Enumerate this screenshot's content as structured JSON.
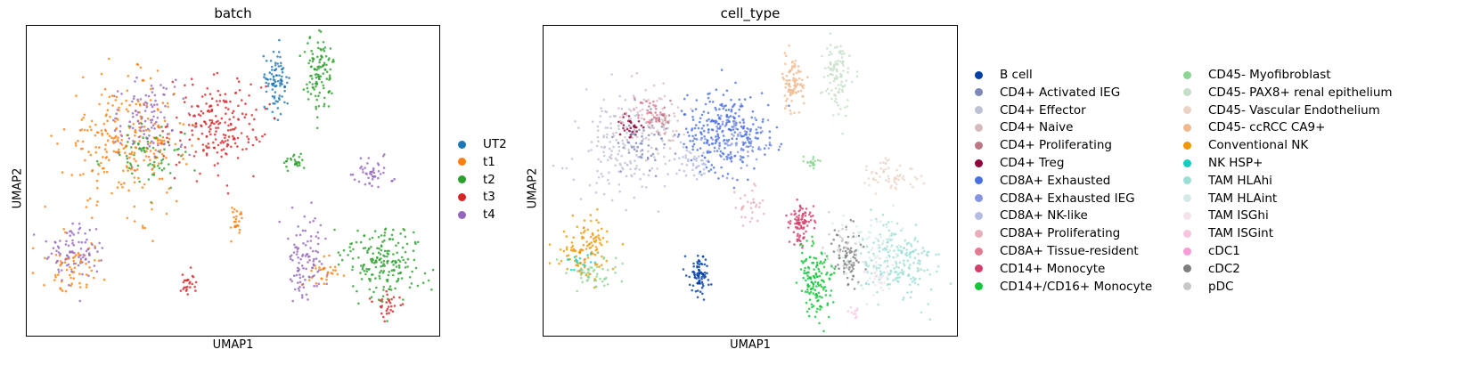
{
  "chart_data": [
    {
      "type": "scatter",
      "title": "batch",
      "xlabel": "UMAP1",
      "ylabel": "UMAP2",
      "grid": false,
      "legend_position": "right",
      "series": [
        {
          "name": "UT2",
          "color": "#1f77b4"
        },
        {
          "name": "t1",
          "color": "#ff7f0e"
        },
        {
          "name": "t2",
          "color": "#2ca02c"
        },
        {
          "name": "t3",
          "color": "#d62728"
        },
        {
          "name": "t4",
          "color": "#9467bd"
        }
      ],
      "clusters": [
        {
          "series": "t1",
          "x": 0.24,
          "y": 0.62,
          "rx": 0.15,
          "ry": 0.2,
          "n": 260
        },
        {
          "series": "t4",
          "x": 0.3,
          "y": 0.7,
          "rx": 0.1,
          "ry": 0.12,
          "n": 110
        },
        {
          "series": "t3",
          "x": 0.46,
          "y": 0.68,
          "rx": 0.11,
          "ry": 0.15,
          "n": 200
        },
        {
          "series": "t2",
          "x": 0.3,
          "y": 0.58,
          "rx": 0.1,
          "ry": 0.1,
          "n": 70
        },
        {
          "series": "t4",
          "x": 0.12,
          "y": 0.28,
          "rx": 0.07,
          "ry": 0.1,
          "n": 90
        },
        {
          "series": "t1",
          "x": 0.12,
          "y": 0.22,
          "rx": 0.07,
          "ry": 0.08,
          "n": 60
        },
        {
          "series": "UT2",
          "x": 0.605,
          "y": 0.82,
          "rx": 0.025,
          "ry": 0.1,
          "n": 90
        },
        {
          "series": "t2",
          "x": 0.71,
          "y": 0.85,
          "rx": 0.035,
          "ry": 0.12,
          "n": 110
        },
        {
          "series": "t2",
          "x": 0.65,
          "y": 0.56,
          "rx": 0.03,
          "ry": 0.025,
          "n": 25
        },
        {
          "series": "t4",
          "x": 0.84,
          "y": 0.52,
          "rx": 0.05,
          "ry": 0.05,
          "n": 45
        },
        {
          "series": "t2",
          "x": 0.86,
          "y": 0.24,
          "rx": 0.1,
          "ry": 0.12,
          "n": 190
        },
        {
          "series": "t4",
          "x": 0.68,
          "y": 0.25,
          "rx": 0.05,
          "ry": 0.14,
          "n": 100
        },
        {
          "series": "t3",
          "x": 0.87,
          "y": 0.1,
          "rx": 0.04,
          "ry": 0.04,
          "n": 30
        },
        {
          "series": "t1",
          "x": 0.51,
          "y": 0.37,
          "rx": 0.02,
          "ry": 0.05,
          "n": 25
        },
        {
          "series": "t3",
          "x": 0.39,
          "y": 0.17,
          "rx": 0.025,
          "ry": 0.05,
          "n": 25
        },
        {
          "series": "t1",
          "x": 0.73,
          "y": 0.2,
          "rx": 0.04,
          "ry": 0.06,
          "n": 30
        }
      ]
    },
    {
      "type": "scatter",
      "title": "cell_type",
      "xlabel": "UMAP1",
      "ylabel": "UMAP2",
      "grid": false,
      "legend_position": "right",
      "series": [
        {
          "name": "B cell",
          "color": "#023fa5"
        },
        {
          "name": "CD4+ Activated IEG",
          "color": "#7d87b9"
        },
        {
          "name": "CD4+ Effector",
          "color": "#bec1d4"
        },
        {
          "name": "CD4+ Naive",
          "color": "#d6bcc0"
        },
        {
          "name": "CD4+ Proliferating",
          "color": "#bb7784"
        },
        {
          "name": "CD4+ Treg",
          "color": "#8e063b"
        },
        {
          "name": "CD8A+ Exhausted",
          "color": "#4a6fe3"
        },
        {
          "name": "CD8A+ Exhausted IEG",
          "color": "#8595e1"
        },
        {
          "name": "CD8A+ NK-like",
          "color": "#b5bbe3"
        },
        {
          "name": "CD8A+ Proliferating",
          "color": "#e6afb9"
        },
        {
          "name": "CD8A+ Tissue-resident",
          "color": "#e07b91"
        },
        {
          "name": "CD14+ Monocyte",
          "color": "#d33f6a"
        },
        {
          "name": "CD14+/CD16+ Monocyte",
          "color": "#11c638"
        },
        {
          "name": "CD45- Myofibroblast",
          "color": "#8dd593"
        },
        {
          "name": "CD45- PAX8+ renal epithelium",
          "color": "#c6dec7"
        },
        {
          "name": "CD45- Vascular Endothelium",
          "color": "#ead3c6"
        },
        {
          "name": "CD45- ccRCC CA9+",
          "color": "#f0b98d"
        },
        {
          "name": "Conventional NK",
          "color": "#ef9708"
        },
        {
          "name": "NK HSP+",
          "color": "#0fcfc0"
        },
        {
          "name": "TAM HLAhi",
          "color": "#9cded6"
        },
        {
          "name": "TAM HLAint",
          "color": "#d5eae7"
        },
        {
          "name": "TAM ISGhi",
          "color": "#f3e1eb"
        },
        {
          "name": "TAM ISGint",
          "color": "#f6c4e1"
        },
        {
          "name": "cDC1",
          "color": "#f79cd4"
        },
        {
          "name": "cDC2",
          "color": "#7f7f7f"
        },
        {
          "name": "pDC",
          "color": "#c7c7c7"
        }
      ],
      "clusters": [
        {
          "series": "CD4+ Effector",
          "x": 0.18,
          "y": 0.6,
          "rx": 0.11,
          "ry": 0.17,
          "n": 150
        },
        {
          "series": "CD4+ Naive",
          "x": 0.26,
          "y": 0.7,
          "rx": 0.09,
          "ry": 0.12,
          "n": 90
        },
        {
          "series": "CD4+ Activated IEG",
          "x": 0.25,
          "y": 0.62,
          "rx": 0.08,
          "ry": 0.1,
          "n": 50
        },
        {
          "series": "CD8A+ Tissue-resident",
          "x": 0.26,
          "y": 0.72,
          "rx": 0.05,
          "ry": 0.05,
          "n": 30
        },
        {
          "series": "CD4+ Treg",
          "x": 0.21,
          "y": 0.67,
          "rx": 0.03,
          "ry": 0.04,
          "n": 30
        },
        {
          "series": "CD4+ Proliferating",
          "x": 0.28,
          "y": 0.7,
          "rx": 0.03,
          "ry": 0.04,
          "n": 25
        },
        {
          "series": "CD8A+ Exhausted",
          "x": 0.44,
          "y": 0.66,
          "rx": 0.1,
          "ry": 0.13,
          "n": 260
        },
        {
          "series": "CD8A+ Exhausted IEG",
          "x": 0.47,
          "y": 0.62,
          "rx": 0.07,
          "ry": 0.09,
          "n": 80
        },
        {
          "series": "CD8A+ NK-like",
          "x": 0.36,
          "y": 0.56,
          "rx": 0.05,
          "ry": 0.07,
          "n": 50
        },
        {
          "series": "CD8A+ Proliferating",
          "x": 0.5,
          "y": 0.42,
          "rx": 0.03,
          "ry": 0.06,
          "n": 30
        },
        {
          "series": "Conventional NK",
          "x": 0.1,
          "y": 0.28,
          "rx": 0.06,
          "ry": 0.09,
          "n": 110
        },
        {
          "series": "CD45- Myofibroblast",
          "x": 0.12,
          "y": 0.2,
          "rx": 0.06,
          "ry": 0.06,
          "n": 60
        },
        {
          "series": "NK HSP+",
          "x": 0.09,
          "y": 0.24,
          "rx": 0.03,
          "ry": 0.03,
          "n": 15
        },
        {
          "series": "B cell",
          "x": 0.375,
          "y": 0.2,
          "rx": 0.025,
          "ry": 0.07,
          "n": 80
        },
        {
          "series": "CD45- ccRCC CA9+",
          "x": 0.605,
          "y": 0.82,
          "rx": 0.025,
          "ry": 0.1,
          "n": 90
        },
        {
          "series": "CD45- PAX8+ renal epithelium",
          "x": 0.71,
          "y": 0.84,
          "rx": 0.035,
          "ry": 0.12,
          "n": 100
        },
        {
          "series": "CD45- Myofibroblast",
          "x": 0.65,
          "y": 0.56,
          "rx": 0.025,
          "ry": 0.02,
          "n": 20
        },
        {
          "series": "CD45- Vascular Endothelium",
          "x": 0.84,
          "y": 0.52,
          "rx": 0.06,
          "ry": 0.05,
          "n": 60
        },
        {
          "series": "CD14+ Monocyte",
          "x": 0.62,
          "y": 0.36,
          "rx": 0.03,
          "ry": 0.06,
          "n": 90
        },
        {
          "series": "CD14+/CD16+ Monocyte",
          "x": 0.66,
          "y": 0.18,
          "rx": 0.04,
          "ry": 0.12,
          "n": 140
        },
        {
          "series": "TAM HLAhi",
          "x": 0.86,
          "y": 0.24,
          "rx": 0.09,
          "ry": 0.12,
          "n": 180
        },
        {
          "series": "TAM HLAint",
          "x": 0.8,
          "y": 0.28,
          "rx": 0.07,
          "ry": 0.12,
          "n": 90
        },
        {
          "series": "cDC2",
          "x": 0.74,
          "y": 0.25,
          "rx": 0.04,
          "ry": 0.1,
          "n": 70
        },
        {
          "series": "pDC",
          "x": 0.72,
          "y": 0.28,
          "rx": 0.04,
          "ry": 0.08,
          "n": 40
        },
        {
          "series": "TAM ISGhi",
          "x": 0.81,
          "y": 0.2,
          "rx": 0.04,
          "ry": 0.05,
          "n": 30
        },
        {
          "series": "TAM ISGint",
          "x": 0.75,
          "y": 0.08,
          "rx": 0.01,
          "ry": 0.02,
          "n": 10
        }
      ]
    }
  ]
}
